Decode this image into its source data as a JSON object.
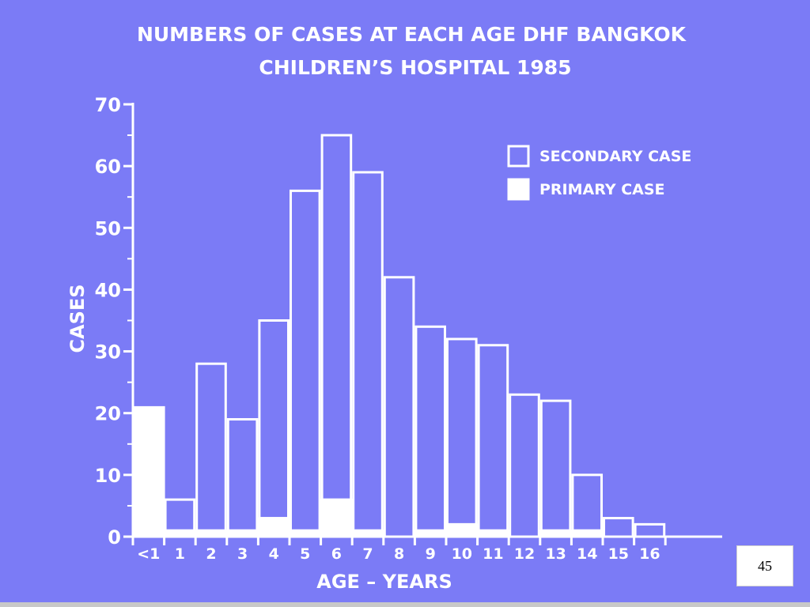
{
  "slide": {
    "page_number": "45",
    "background_color": "#7b7bf6",
    "foreground_color": "#ffffff"
  },
  "chart_data": {
    "type": "bar",
    "title_line1": "NUMBERS OF CASES AT EACH AGE DHF BANGKOK",
    "title_line2": "CHILDREN’S HOSPITAL 1985",
    "xlabel": "AGE – YEARS",
    "ylabel": "CASES",
    "ylim": [
      0,
      70
    ],
    "y_ticks": [
      0,
      10,
      20,
      30,
      40,
      50,
      60,
      70
    ],
    "y_tick_labels": [
      "0",
      "10",
      "20",
      "30",
      "40",
      "50",
      "60",
      "70"
    ],
    "categories": [
      "<1",
      "1",
      "2",
      "3",
      "4",
      "5",
      "6",
      "7",
      "8",
      "9",
      "10",
      "11",
      "12",
      "13",
      "14",
      "15",
      "16"
    ],
    "stacked": true,
    "series": [
      {
        "name": "PRIMARY CASE",
        "fill": "solid",
        "values": [
          21,
          1,
          1,
          1,
          3,
          1,
          6,
          1,
          0,
          1,
          2,
          1,
          0,
          1,
          1,
          0,
          0
        ]
      },
      {
        "name": "SECONDARY CASE",
        "fill": "outline",
        "values": [
          0,
          5,
          27,
          18,
          32,
          55,
          59,
          58,
          42,
          33,
          30,
          30,
          23,
          21,
          9,
          3,
          2
        ]
      }
    ],
    "legend": {
      "position": "top-right",
      "items": [
        "SECONDARY CASE",
        "PRIMARY CASE"
      ]
    },
    "grid": false
  }
}
